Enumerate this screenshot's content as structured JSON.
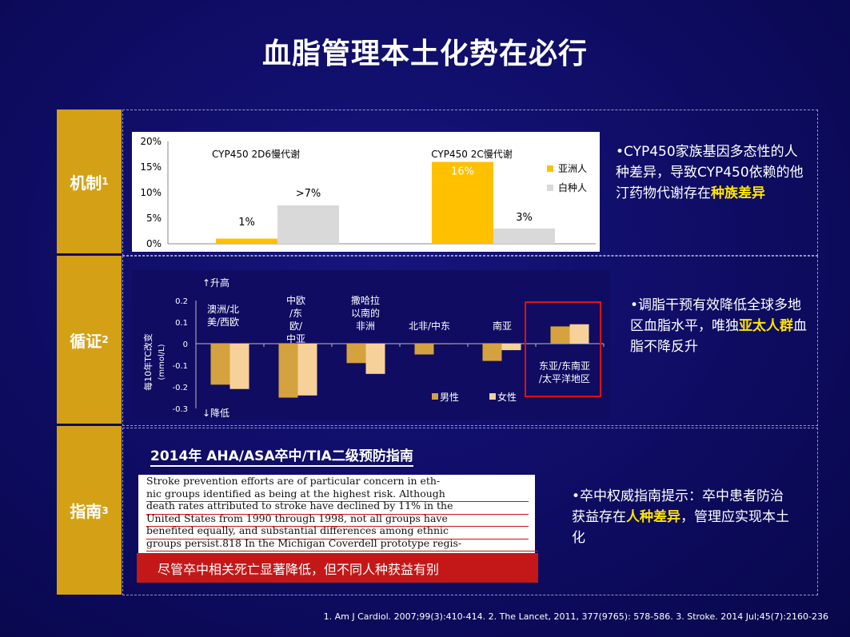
{
  "title": "血脂管理本土化势在必行",
  "rows": [
    {
      "label": "机制",
      "sup": "1"
    },
    {
      "label": "循证",
      "sup": "2"
    },
    {
      "label": "指南",
      "sup": "3"
    }
  ],
  "chart_data": [
    {
      "type": "bar",
      "groups": [
        "CYP450 2D6慢代谢",
        "CYP450 2C慢代谢"
      ],
      "series": [
        {
          "name": "亚洲人",
          "values": [
            1,
            16
          ],
          "labels": [
            "1%",
            "16%"
          ],
          "color": "#ffc000"
        },
        {
          "name": "白种人",
          "values": [
            7.5,
            3
          ],
          "labels": [
            ">7%",
            "3%"
          ],
          "color": "#d9d9d9"
        }
      ],
      "yticks": [
        "20%",
        "15%",
        "10%",
        "5%",
        "0%"
      ],
      "ylim": [
        0,
        20
      ]
    },
    {
      "type": "bar",
      "categories": [
        "澳洲/北美/西欧",
        "中欧/东欧/中亚",
        "撒哈拉以南的非洲",
        "北非/中东",
        "南亚",
        "东亚/东南亚/太平洋地区"
      ],
      "category_labels": [
        [
          "澳洲/北",
          "美/西欧"
        ],
        [
          "中欧",
          "/东",
          "欧/",
          "中亚"
        ],
        [
          "撒哈拉",
          "以南的",
          "非洲"
        ],
        [
          "北非/中东"
        ],
        [
          "南亚"
        ],
        [
          "东亚/东南亚",
          "/太平洋地区"
        ]
      ],
      "series": [
        {
          "name": "男性",
          "values": [
            -0.19,
            -0.25,
            -0.09,
            -0.05,
            -0.08,
            0.08
          ],
          "color": "#d4a23f"
        },
        {
          "name": "女性",
          "values": [
            -0.21,
            -0.24,
            -0.14,
            0.0,
            -0.03,
            0.09
          ],
          "color": "#f7d19a"
        }
      ],
      "yticks": [
        "0.2",
        "0.1",
        "0",
        "-0.1",
        "-0.2",
        "-0.3"
      ],
      "ylim": [
        -0.3,
        0.2
      ],
      "ylabel": "每10年TC改变",
      "ylabel_unit": "(mmol/L)",
      "up_label": "↑升高",
      "down_label": "↓降低"
    }
  ],
  "notes": {
    "mechanism": {
      "pre": "•CYP450家族基因多态性的人种差异，导致CYP450依赖的他汀药物代谢存在",
      "hl": "种族差异",
      "post": ""
    },
    "evidence": {
      "pre": "•调脂干预有效降低全球多地区血脂水平，唯独",
      "hl": "亚太人群",
      "post": "血脂不降反升"
    },
    "guideline": {
      "pre": "•卒中权威指南提示：卒中患者防治获益存在",
      "hl": "人种差异",
      "post": "，管理应实现本土化"
    }
  },
  "guideline": {
    "title": "2014年 AHA/ASA卒中/TIA二级预防指南",
    "excerpt_lines": [
      "Stroke prevention efforts are of particular concern in eth-",
      "nic groups identified as being at the highest risk. Although",
      "death rates attributed to stroke have declined by 11% in the",
      "United States from 1990 through 1998, not all groups have",
      "benefited equally, and substantial differences among ethnic",
      "groups persist.818 In the Michigan Coverdell prototype regis-"
    ],
    "callout": "尽管卒中相关死亡显著降低，但不同人种获益有别"
  },
  "references": "1.   Am J Cardiol. 2007;99(3):410-414.  2. The Lancet, 2011, 377(9765): 578-586.  3. Stroke. 2014 Jul;45(7):2160-236"
}
